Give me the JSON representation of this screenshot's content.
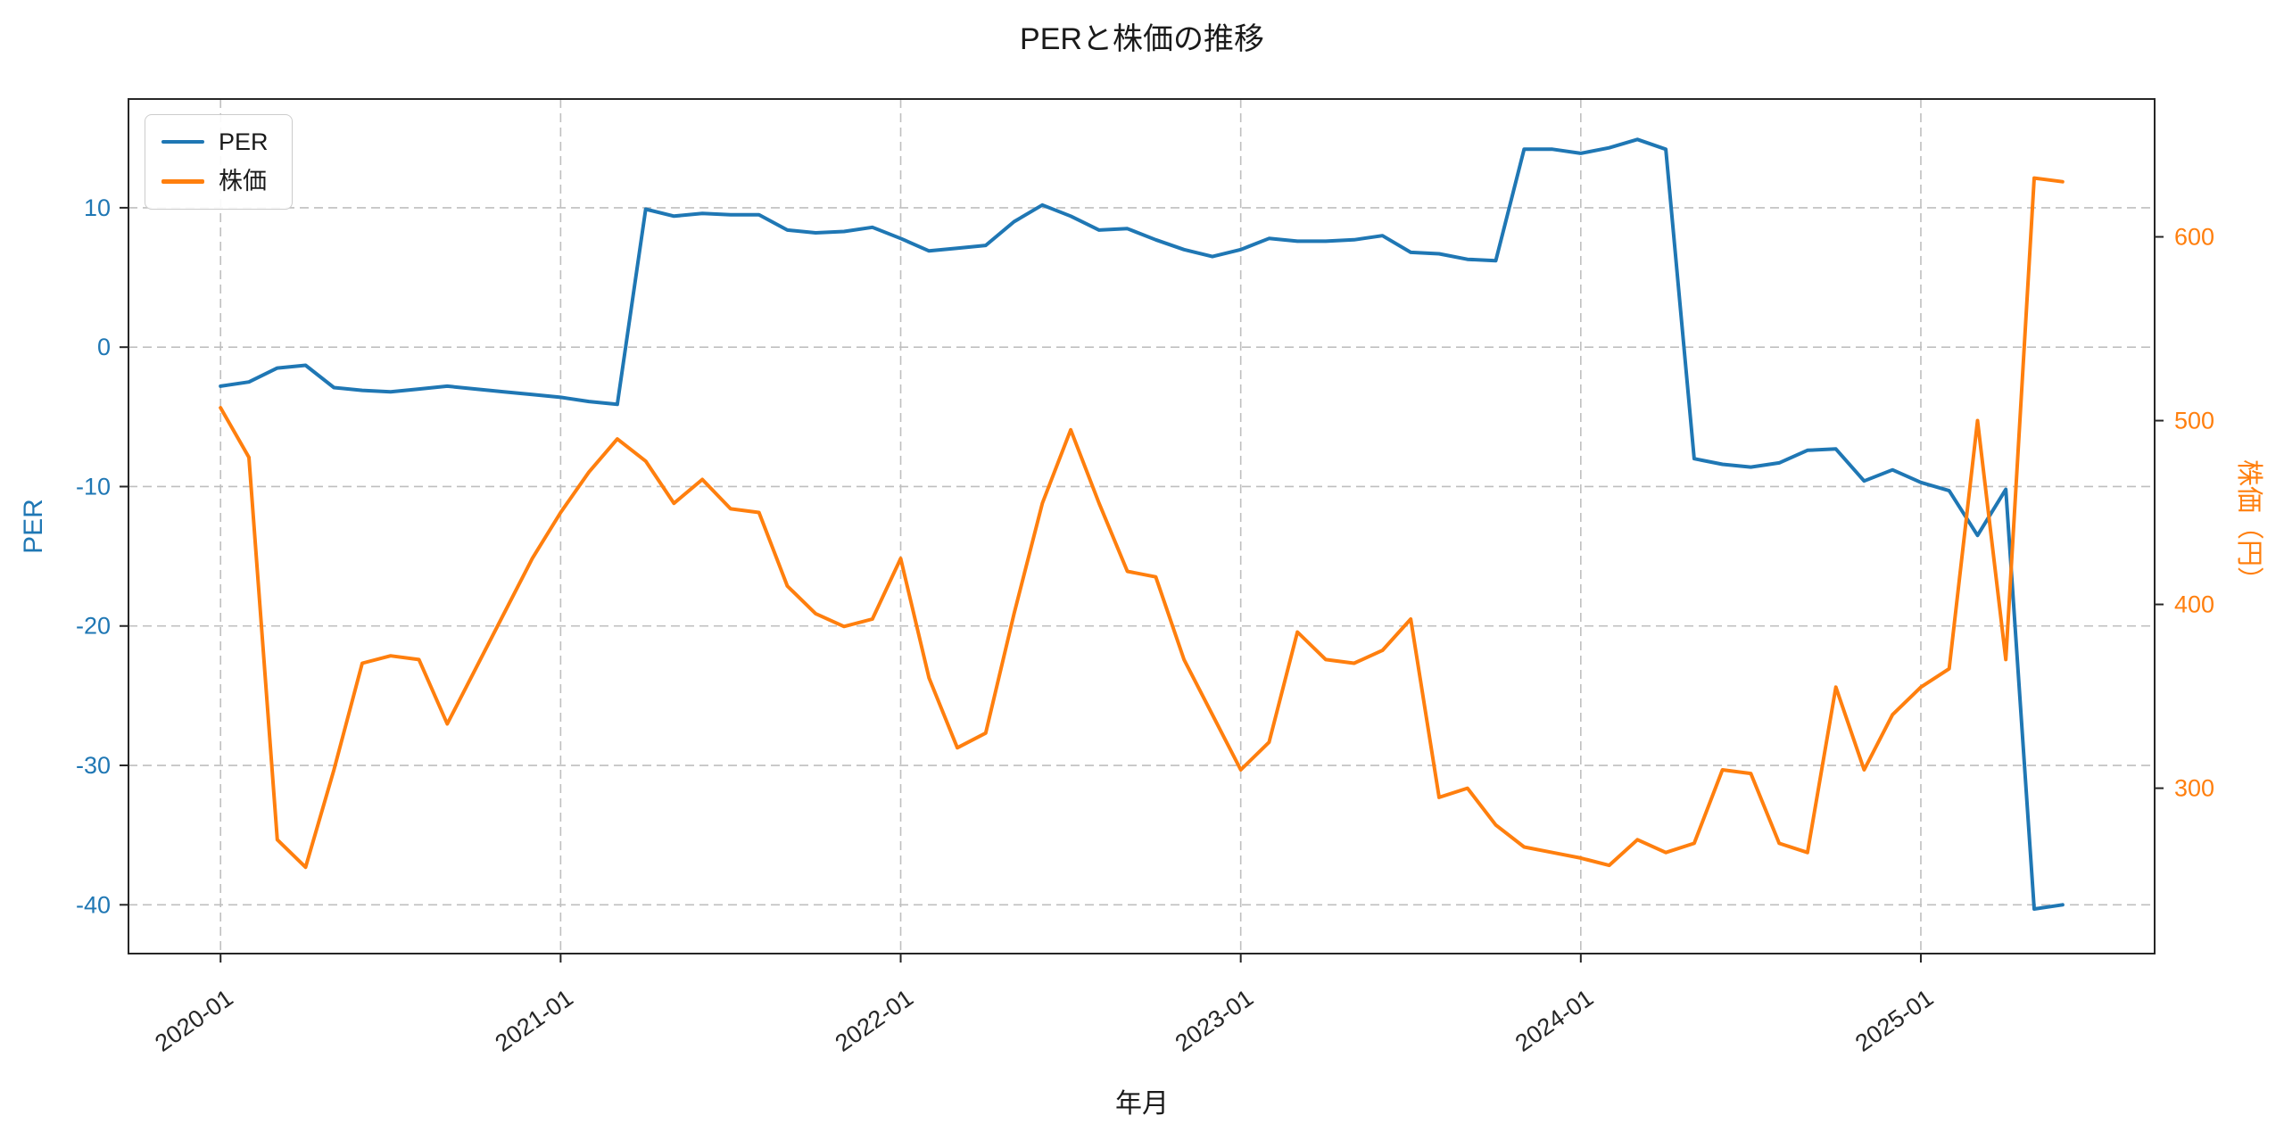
{
  "colors": {
    "per": "#1f77b4",
    "price": "#ff7f0e",
    "grid": "#bfbfbf",
    "spine": "#262626",
    "tick_text": "#262626"
  },
  "chart_data": {
    "type": "line",
    "title": "PERと株価の推移",
    "xlabel": "年月",
    "ylabel_left": "PER",
    "ylabel_right": "株価（円）",
    "legend_position": "upper-left",
    "grid": true,
    "grid_linestyle": "dashed",
    "months": [
      "2020-01",
      "2020-02",
      "2020-03",
      "2020-04",
      "2020-05",
      "2020-06",
      "2020-07",
      "2020-08",
      "2020-09",
      "2020-10",
      "2020-11",
      "2020-12",
      "2021-01",
      "2021-02",
      "2021-03",
      "2021-04",
      "2021-05",
      "2021-06",
      "2021-07",
      "2021-08",
      "2021-09",
      "2021-10",
      "2021-11",
      "2021-12",
      "2022-01",
      "2022-02",
      "2022-03",
      "2022-04",
      "2022-05",
      "2022-06",
      "2022-07",
      "2022-08",
      "2022-09",
      "2022-10",
      "2022-11",
      "2022-12",
      "2023-01",
      "2023-02",
      "2023-03",
      "2023-04",
      "2023-05",
      "2023-06",
      "2023-07",
      "2023-08",
      "2023-09",
      "2023-10",
      "2023-11",
      "2023-12",
      "2024-01",
      "2024-02",
      "2024-03",
      "2024-04",
      "2024-05",
      "2024-06",
      "2024-07",
      "2024-08",
      "2024-09",
      "2024-10",
      "2024-11",
      "2024-12",
      "2025-01",
      "2025-02",
      "2025-03",
      "2025-04",
      "2025-05",
      "2025-06"
    ],
    "x_tick_labels": [
      "2020-01",
      "2021-01",
      "2022-01",
      "2023-01",
      "2024-01",
      "2025-01"
    ],
    "x_tick_months": [
      0,
      12,
      24,
      36,
      48,
      60
    ],
    "x_lim": [
      -3.25,
      68.25
    ],
    "left_axis": {
      "ticks": [
        10,
        0,
        -10,
        -20,
        -30,
        -40
      ],
      "lim": [
        -43.5,
        17.8
      ]
    },
    "right_axis": {
      "ticks": [
        600,
        500,
        400,
        300
      ],
      "lim": [
        210,
        675
      ]
    },
    "series": [
      {
        "id": "per-line",
        "name": "PER",
        "axis": "left",
        "color": "#1f77b4",
        "values": [
          -2.8,
          -2.5,
          -1.5,
          -1.3,
          -2.9,
          -3.1,
          -3.2,
          -3.0,
          -2.8,
          -3.0,
          -3.2,
          -3.4,
          -3.6,
          -3.9,
          -4.1,
          9.9,
          9.4,
          9.6,
          9.5,
          9.5,
          8.4,
          8.2,
          8.3,
          8.6,
          7.8,
          6.9,
          7.1,
          7.3,
          9.0,
          10.2,
          9.4,
          8.4,
          8.5,
          7.7,
          7.0,
          6.5,
          7.0,
          7.8,
          7.6,
          7.6,
          7.7,
          8.0,
          6.8,
          6.7,
          6.3,
          6.2,
          14.2,
          14.2,
          13.9,
          14.3,
          14.9,
          14.2,
          -8.0,
          -8.4,
          -8.6,
          -8.3,
          -7.4,
          -7.3,
          -9.6,
          -8.8,
          -9.7,
          -10.3,
          -13.5,
          -10.2,
          -40.3,
          -40.0
        ]
      },
      {
        "id": "price-line",
        "name": "株価",
        "axis": "right",
        "color": "#ff7f0e",
        "values": [
          507,
          480,
          272,
          257,
          310,
          368,
          372,
          370,
          335,
          365,
          395,
          425,
          450,
          472,
          490,
          478,
          455,
          468,
          452,
          450,
          410,
          395,
          388,
          392,
          425,
          360,
          322,
          330,
          395,
          455,
          495,
          455,
          418,
          415,
          370,
          340,
          310,
          325,
          385,
          370,
          368,
          375,
          392,
          295,
          300,
          280,
          268,
          265,
          262,
          258,
          272,
          265,
          270,
          310,
          308,
          270,
          265,
          355,
          310,
          340,
          355,
          365,
          500,
          370,
          632,
          630
        ]
      }
    ]
  }
}
